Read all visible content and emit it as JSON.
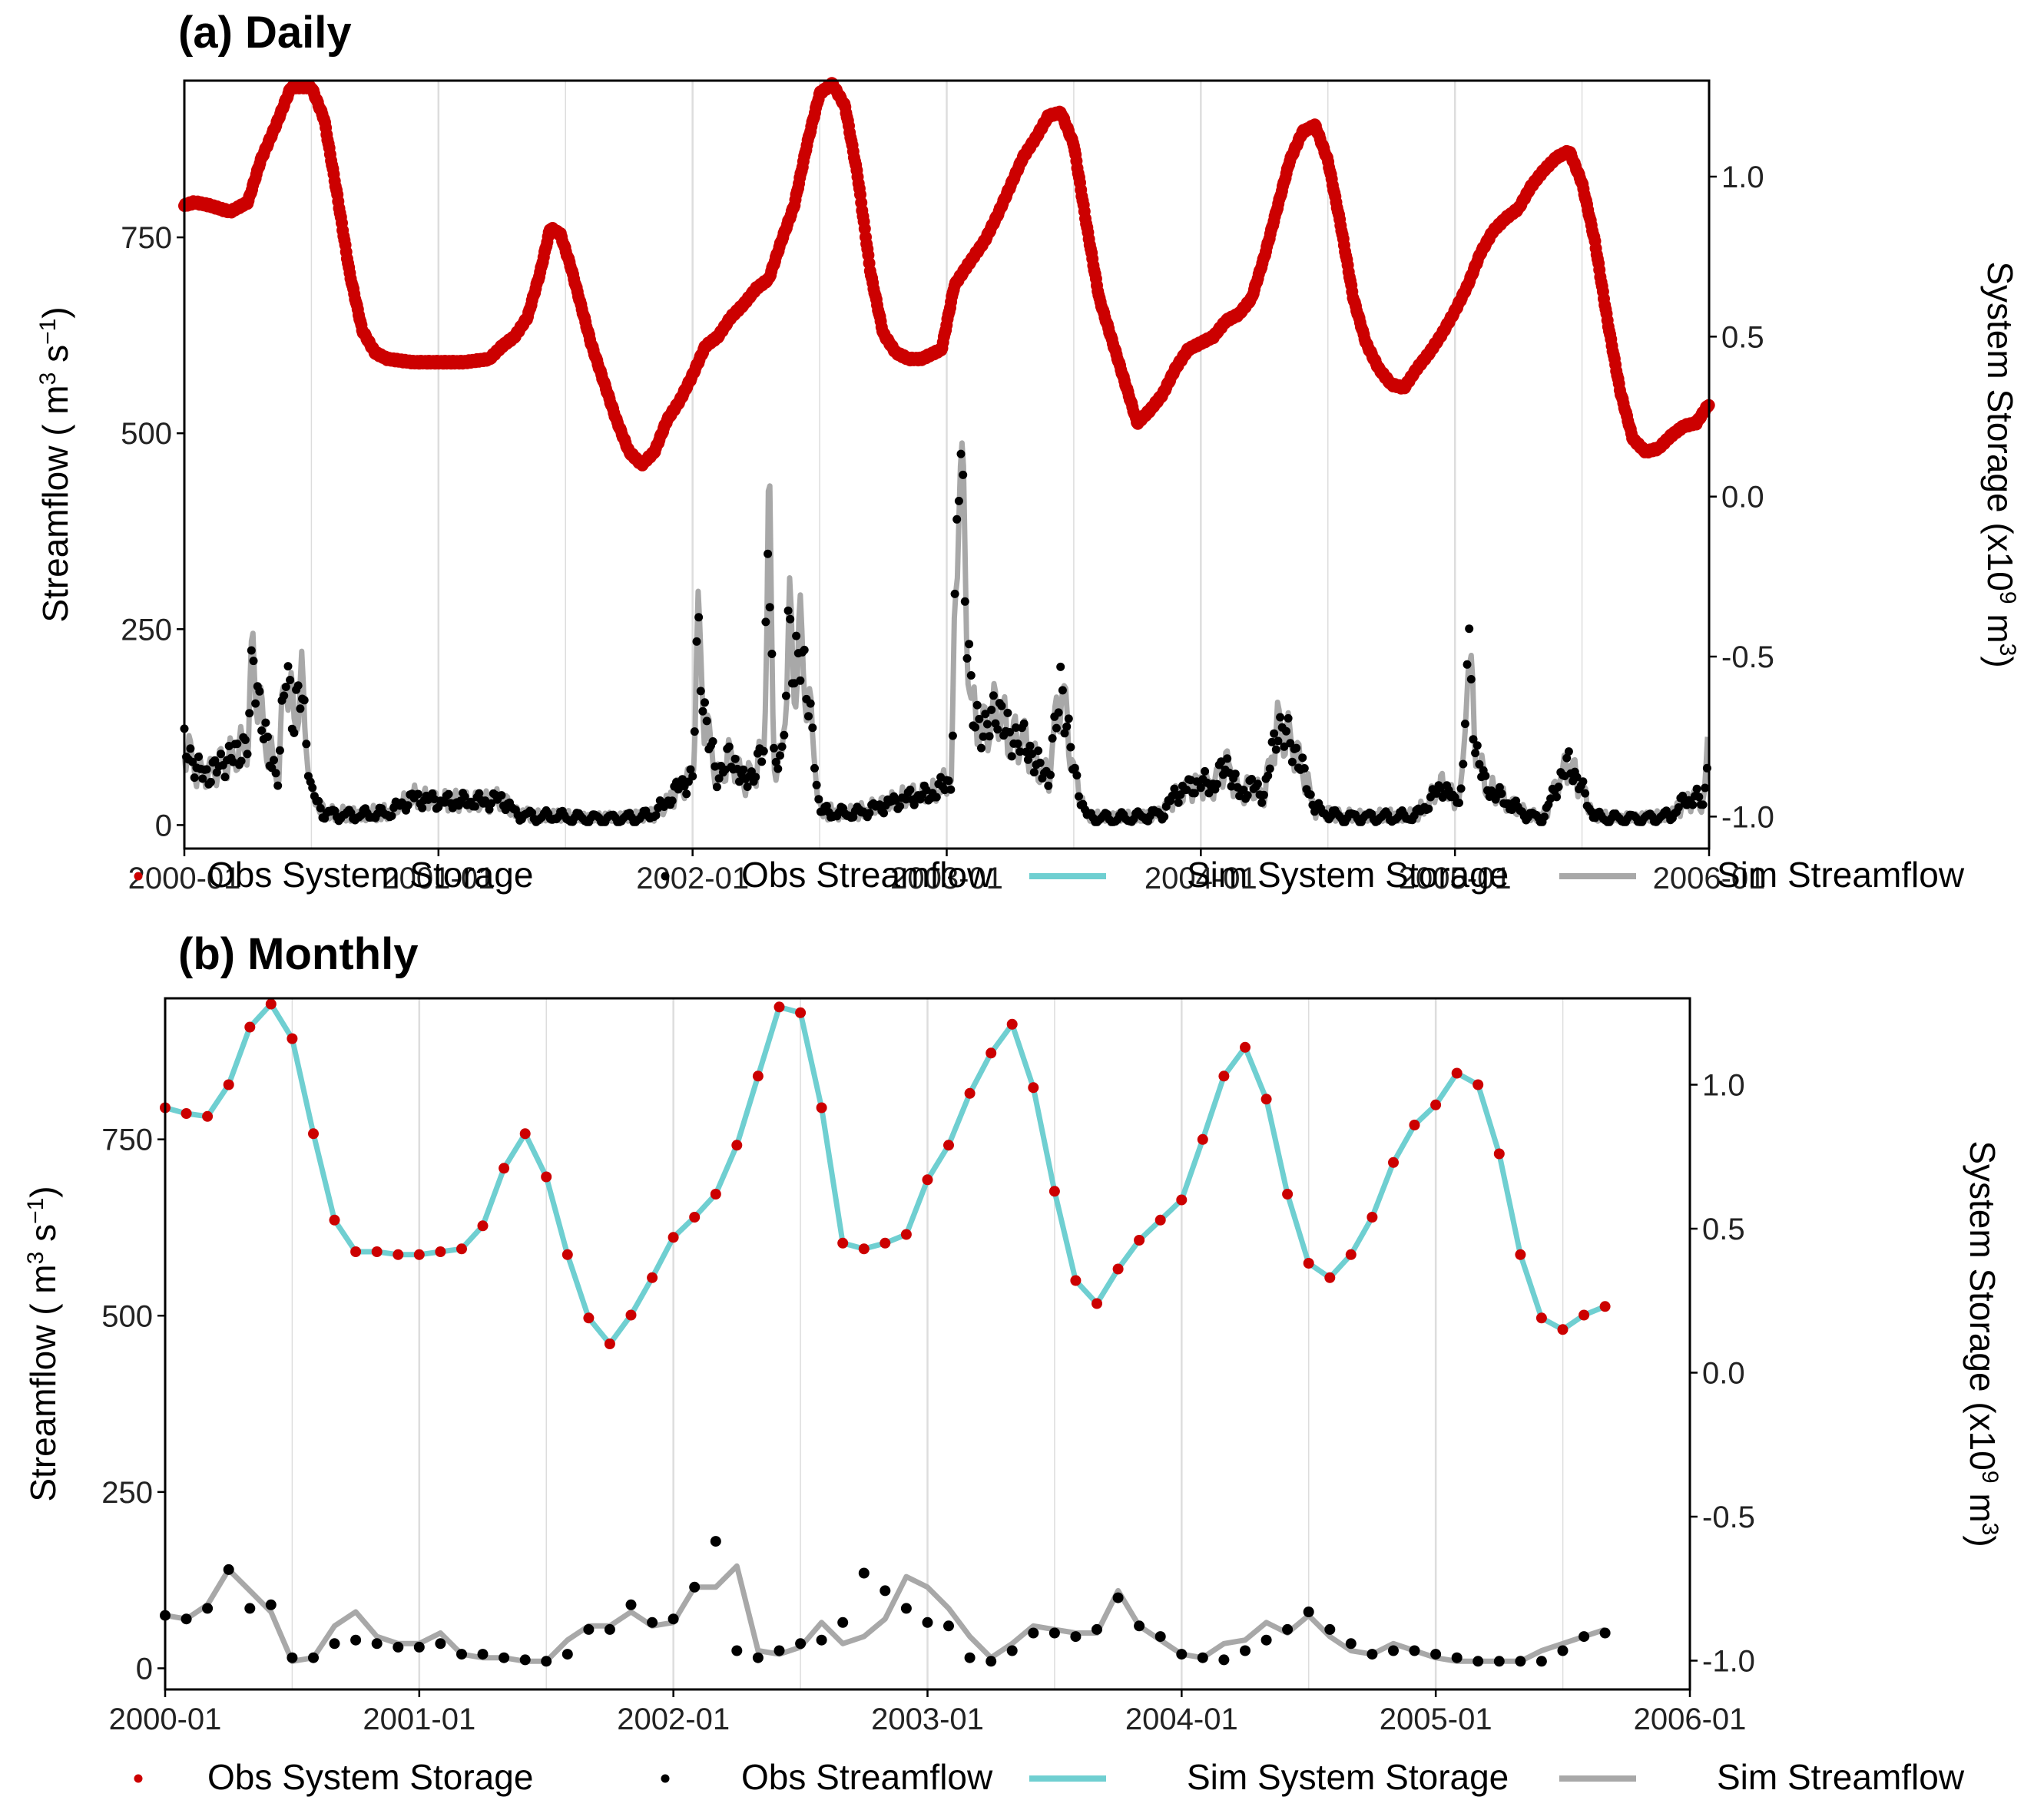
{
  "colors": {
    "obs_storage": "#cc0000",
    "obs_streamflow": "#000000",
    "sim_storage": "#6fcfd1",
    "sim_streamflow": "#a8a8a8",
    "grid": "#dddddd"
  },
  "legend": [
    {
      "label": "Obs System Storage",
      "kind": "point",
      "color_key": "obs_storage"
    },
    {
      "label": "Obs Streamflow",
      "kind": "point",
      "color_key": "obs_streamflow"
    },
    {
      "label": "Sim System Storage",
      "kind": "line",
      "color_key": "sim_storage"
    },
    {
      "label": "Sim Streamflow",
      "kind": "line",
      "color_key": "sim_streamflow"
    }
  ],
  "chart_data": [
    {
      "id": "daily",
      "type": "line",
      "title": "(a) Daily",
      "ylabel_left": "Streamflow ( m3 s−1)",
      "ylabel_right": "System Storage (x109 m3)",
      "xlim": [
        2000.0,
        2006.0
      ],
      "xticks": [
        2000,
        2001,
        2002,
        2003,
        2004,
        2005,
        2006
      ],
      "xtick_labels": [
        "2000-01",
        "2001-01",
        "2002-01",
        "2003-01",
        "2004-01",
        "2005-01",
        "2006-01"
      ],
      "ylim_left": [
        -30,
        950
      ],
      "yticks_left": [
        0,
        250,
        500,
        750
      ],
      "ylim_right": [
        -1.1,
        1.3
      ],
      "yticks_right": [
        -1.0,
        -0.5,
        0.0,
        0.5,
        1.0
      ],
      "ytick_labels_right": [
        "-1.0",
        "-0.5",
        "0.0",
        "0.5",
        "1.0"
      ],
      "storage_series": {
        "x": [
          2000.0,
          2000.04,
          2000.1,
          2000.18,
          2000.25,
          2000.3,
          2000.36,
          2000.42,
          2000.5,
          2000.55,
          2000.6,
          2000.65,
          2000.7,
          2000.75,
          2000.8,
          2000.9,
          2001.0,
          2001.1,
          2001.2,
          2001.25,
          2001.3,
          2001.35,
          2001.4,
          2001.44,
          2001.48,
          2001.52,
          2001.6,
          2001.7,
          2001.75,
          2001.8,
          2001.85,
          2001.9,
          2001.95,
          2002.0,
          2002.05,
          2002.1,
          2002.15,
          2002.2,
          2002.25,
          2002.3,
          2002.35,
          2002.4,
          2002.45,
          2002.5,
          2002.55,
          2002.6,
          2002.65,
          2002.7,
          2002.75,
          2002.8,
          2002.85,
          2002.9,
          2002.98,
          2003.03,
          2003.08,
          2003.15,
          2003.2,
          2003.25,
          2003.3,
          2003.35,
          2003.4,
          2003.45,
          2003.5,
          2003.55,
          2003.6,
          2003.7,
          2003.75,
          2003.8,
          2003.85,
          2003.9,
          2003.95,
          2004.0,
          2004.05,
          2004.1,
          2004.15,
          2004.2,
          2004.25,
          2004.3,
          2004.35,
          2004.4,
          2004.45,
          2004.5,
          2004.55,
          2004.6,
          2004.65,
          2004.7,
          2004.75,
          2004.8,
          2004.85,
          2004.9,
          2004.95,
          2005.0,
          2005.05,
          2005.1,
          2005.15,
          2005.2,
          2005.25,
          2005.3,
          2005.35,
          2005.4,
          2005.45,
          2005.5,
          2005.55,
          2005.6,
          2005.65,
          2005.7,
          2005.75,
          2005.8,
          2005.85,
          2005.9,
          2005.95,
          2006.0
        ],
        "y": [
          0.91,
          0.92,
          0.91,
          0.89,
          0.92,
          1.05,
          1.16,
          1.28,
          1.28,
          1.18,
          0.95,
          0.7,
          0.52,
          0.45,
          0.43,
          0.42,
          0.42,
          0.42,
          0.43,
          0.47,
          0.5,
          0.56,
          0.7,
          0.84,
          0.82,
          0.72,
          0.48,
          0.24,
          0.14,
          0.1,
          0.14,
          0.24,
          0.3,
          0.38,
          0.47,
          0.5,
          0.56,
          0.6,
          0.65,
          0.68,
          0.8,
          0.91,
          1.1,
          1.26,
          1.29,
          1.22,
          1.0,
          0.7,
          0.51,
          0.45,
          0.43,
          0.43,
          0.46,
          0.66,
          0.72,
          0.8,
          0.88,
          0.97,
          1.06,
          1.12,
          1.19,
          1.2,
          1.1,
          0.85,
          0.62,
          0.36,
          0.23,
          0.27,
          0.32,
          0.4,
          0.46,
          0.48,
          0.5,
          0.55,
          0.57,
          0.62,
          0.75,
          0.9,
          1.05,
          1.14,
          1.16,
          1.05,
          0.85,
          0.62,
          0.48,
          0.4,
          0.35,
          0.34,
          0.4,
          0.45,
          0.51,
          0.58,
          0.66,
          0.76,
          0.83,
          0.87,
          0.9,
          0.97,
          1.02,
          1.06,
          1.08,
          0.98,
          0.8,
          0.55,
          0.33,
          0.18,
          0.14,
          0.15,
          0.19,
          0.22,
          0.23,
          0.29
        ]
      },
      "streamflow_series": {
        "x": [
          2000.0,
          2000.05,
          2000.1,
          2000.15,
          2000.2,
          2000.25,
          2000.27,
          2000.3,
          2000.33,
          2000.37,
          2000.4,
          2000.43,
          2000.46,
          2000.5,
          2000.55,
          2000.65,
          2000.75,
          2000.8,
          2000.9,
          2001.0,
          2001.1,
          2001.2,
          2001.25,
          2001.3,
          2001.35,
          2001.4,
          2001.45,
          2001.5,
          2001.6,
          2001.7,
          2001.8,
          2001.85,
          2001.9,
          2001.95,
          2002.0,
          2002.02,
          2002.05,
          2002.1,
          2002.15,
          2002.2,
          2002.25,
          2002.28,
          2002.3,
          2002.32,
          2002.35,
          2002.38,
          2002.4,
          2002.42,
          2002.45,
          2002.48,
          2002.5,
          2002.55,
          2002.65,
          2002.75,
          2002.85,
          2002.95,
          2003.02,
          2003.05,
          2003.07,
          2003.1,
          2003.15,
          2003.2,
          2003.25,
          2003.3,
          2003.35,
          2003.4,
          2003.45,
          2003.5,
          2003.55,
          2003.65,
          2003.75,
          2003.85,
          2003.9,
          2004.0,
          2004.05,
          2004.1,
          2004.15,
          2004.2,
          2004.25,
          2004.3,
          2004.35,
          2004.4,
          2004.45,
          2004.5,
          2004.55,
          2004.65,
          2004.75,
          2004.85,
          2004.95,
          2005.0,
          2005.03,
          2005.05,
          2005.08,
          2005.12,
          2005.2,
          2005.25,
          2005.3,
          2005.35,
          2005.4,
          2005.45,
          2005.55,
          2005.65,
          2005.75,
          2005.85,
          2005.9,
          2005.95,
          2005.98,
          2006.0
        ],
        "y": [
          105,
          70,
          65,
          80,
          90,
          105,
          220,
          140,
          95,
          60,
          210,
          130,
          180,
          40,
          15,
          12,
          14,
          15,
          35,
          30,
          30,
          30,
          35,
          15,
          12,
          10,
          12,
          10,
          8,
          8,
          10,
          15,
          30,
          50,
          60,
          250,
          130,
          60,
          90,
          55,
          70,
          100,
          410,
          80,
          80,
          260,
          180,
          240,
          170,
          90,
          18,
          15,
          15,
          25,
          35,
          40,
          60,
          530,
          320,
          140,
          120,
          150,
          110,
          110,
          80,
          60,
          180,
          70,
          10,
          8,
          10,
          15,
          40,
          55,
          50,
          80,
          40,
          50,
          40,
          125,
          110,
          70,
          20,
          15,
          10,
          10,
          10,
          12,
          50,
          30,
          50,
          240,
          100,
          50,
          30,
          20,
          10,
          10,
          50,
          80,
          10,
          8,
          8,
          12,
          30,
          35,
          25,
          130
        ]
      }
    },
    {
      "id": "monthly",
      "type": "line",
      "title": "(b) Monthly",
      "ylabel_left": "Streamflow ( m3 s−1)",
      "ylabel_right": "System Storage (x109 m3)",
      "xlim": [
        2000.0,
        2006.0
      ],
      "xticks": [
        2000,
        2001,
        2002,
        2003,
        2004,
        2005,
        2006
      ],
      "xtick_labels": [
        "2000-01",
        "2001-01",
        "2002-01",
        "2003-01",
        "2004-01",
        "2005-01",
        "2006-01"
      ],
      "ylim_left": [
        -30,
        950
      ],
      "yticks_left": [
        0,
        250,
        500,
        750
      ],
      "ylim_right": [
        -1.1,
        1.3
      ],
      "yticks_right": [
        -1.0,
        -0.5,
        0.0,
        0.5,
        1.0
      ],
      "ytick_labels_right": [
        "-1.0",
        "-0.5",
        "0.0",
        "0.5",
        "1.0"
      ],
      "storage_series": {
        "x_start": 2000.0,
        "x_step": 0.08333,
        "y": [
          0.92,
          0.9,
          0.89,
          1.0,
          1.2,
          1.28,
          1.16,
          0.83,
          0.53,
          0.42,
          0.42,
          0.41,
          0.41,
          0.42,
          0.43,
          0.51,
          0.71,
          0.83,
          0.68,
          0.41,
          0.19,
          0.1,
          0.2,
          0.33,
          0.47,
          0.54,
          0.62,
          0.79,
          1.03,
          1.27,
          1.25,
          0.92,
          0.45,
          0.43,
          0.45,
          0.48,
          0.67,
          0.79,
          0.97,
          1.11,
          1.21,
          0.99,
          0.63,
          0.32,
          0.24,
          0.36,
          0.46,
          0.53,
          0.6,
          0.81,
          1.03,
          1.13,
          0.95,
          0.62,
          0.38,
          0.33,
          0.41,
          0.54,
          0.73,
          0.86,
          0.93,
          1.04,
          1.0,
          0.76,
          0.41,
          0.19,
          0.15,
          0.2,
          0.23
        ]
      },
      "streamflow_series": {
        "x_start": 2000.0,
        "x_step": 0.08333,
        "y_obs": [
          75,
          70,
          85,
          140,
          85,
          90,
          15,
          15,
          35,
          40,
          35,
          30,
          30,
          35,
          20,
          20,
          15,
          12,
          10,
          20,
          55,
          55,
          90,
          65,
          70,
          115,
          180,
          25,
          15,
          25,
          35,
          40,
          65,
          135,
          110,
          85,
          65,
          60,
          15,
          10,
          25,
          50,
          50,
          45,
          55,
          100,
          60,
          45,
          20,
          15,
          12,
          25,
          40,
          55,
          80,
          55,
          35,
          20,
          25,
          25,
          20,
          15,
          10,
          10,
          10,
          10,
          25,
          45,
          50
        ],
        "y_sim": [
          75,
          70,
          90,
          140,
          110,
          80,
          10,
          15,
          60,
          80,
          45,
          35,
          35,
          50,
          20,
          15,
          15,
          10,
          10,
          40,
          60,
          60,
          80,
          60,
          65,
          115,
          115,
          145,
          25,
          20,
          30,
          65,
          35,
          45,
          70,
          130,
          115,
          85,
          45,
          15,
          35,
          60,
          55,
          50,
          50,
          110,
          60,
          40,
          20,
          15,
          35,
          40,
          65,
          50,
          75,
          45,
          25,
          20,
          35,
          25,
          15,
          10,
          10,
          10,
          10,
          25,
          35,
          45,
          55
        ]
      }
    }
  ]
}
